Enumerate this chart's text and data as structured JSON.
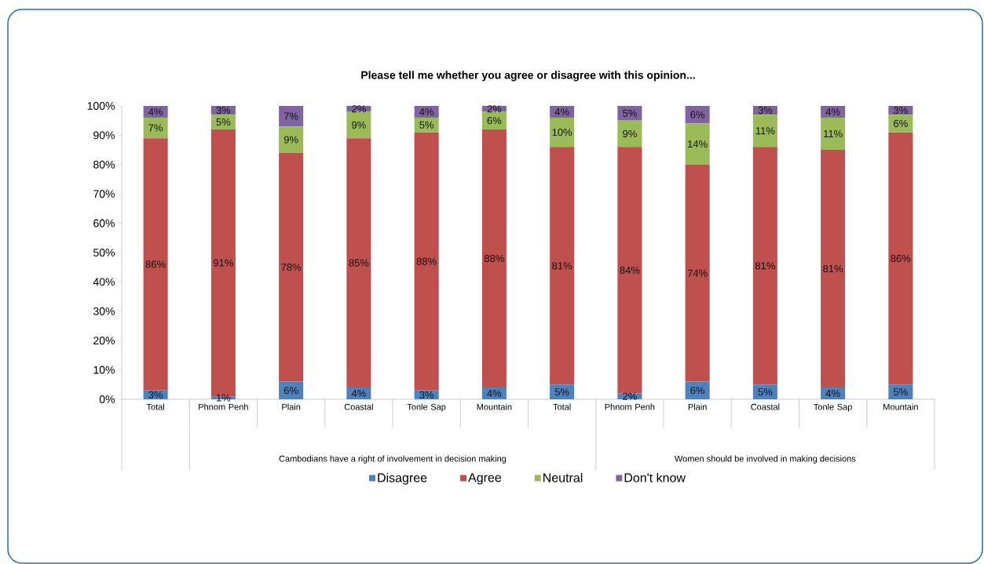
{
  "chart_data": {
    "type": "bar",
    "title": "Please tell me whether you agree or disagree with this opinion...",
    "categories": [
      "Total",
      "Phnom Penh",
      "Plain",
      "Coastal",
      "Tonle Sap",
      "Mountain",
      "Total",
      "Phnom Penh",
      "Plain",
      "Coastal",
      "Tonle Sap",
      "Mountain"
    ],
    "annotations": [
      "Cambodians have a right of involvement in decision making",
      "Women should be involved in making decisions"
    ],
    "stacked": true,
    "legend": "bottom",
    "ylim": [
      0,
      100
    ],
    "yticks": [
      {
        "value": 0,
        "label": "0%"
      },
      {
        "value": 10,
        "label": "10%"
      },
      {
        "value": 20,
        "label": "20%"
      },
      {
        "value": 30,
        "label": "30%"
      },
      {
        "value": 40,
        "label": "40%"
      },
      {
        "value": 50,
        "label": "50%"
      },
      {
        "value": 60,
        "label": "60%"
      },
      {
        "value": 70,
        "label": "70%"
      },
      {
        "value": 80,
        "label": "80%"
      },
      {
        "value": 90,
        "label": "90%"
      },
      {
        "value": 100,
        "label": "100%"
      }
    ],
    "series": [
      {
        "name": "Disagree",
        "color": "#4f81bd",
        "values": [
          3,
          1,
          6,
          4,
          3,
          4,
          5,
          2,
          6,
          5,
          4,
          5
        ],
        "value_labels": [
          "3%",
          "1%",
          "6%",
          "4%",
          "3%",
          "4%",
          "5%",
          "2%",
          "6%",
          "5%",
          "4%",
          "5%"
        ]
      },
      {
        "name": "Agree",
        "color": "#c0504d",
        "values": [
          86,
          91,
          78,
          85,
          88,
          88,
          81,
          84,
          74,
          81,
          81,
          86
        ],
        "value_labels": [
          "86%",
          "91%",
          "78%",
          "85%",
          "88%",
          "88%",
          "81%",
          "84%",
          "74%",
          "81%",
          "81%",
          "86%"
        ]
      },
      {
        "name": "Neutral",
        "color": "#9bbb59",
        "values": [
          7,
          5,
          9,
          9,
          5,
          6,
          10,
          9,
          14,
          11,
          11,
          6
        ],
        "value_labels": [
          "7%",
          "5%",
          "9%",
          "9%",
          "5%",
          "6%",
          "10%",
          "9%",
          "14%",
          "11%",
          "11%",
          "6%"
        ]
      },
      {
        "name": "Don't know",
        "color": "#8064a2",
        "values": [
          4,
          3,
          7,
          2,
          4,
          2,
          4,
          5,
          6,
          3,
          4,
          3
        ],
        "value_labels": [
          "4%",
          "3%",
          "7%",
          "2%",
          "4%",
          "2%",
          "4%",
          "5%",
          "6%",
          "3%",
          "4%",
          "3%"
        ]
      }
    ]
  }
}
